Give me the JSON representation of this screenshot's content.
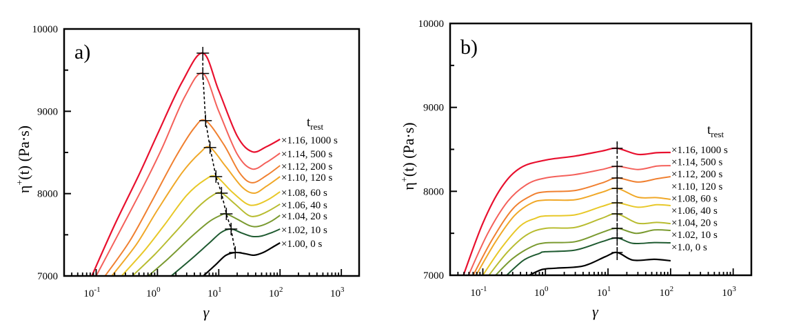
{
  "chart_data": [
    {
      "type": "line",
      "panel_label": "a)",
      "xlabel": "γ",
      "ylabel": "η⁺(t) (Pa·s)",
      "xscale": "log",
      "xlim": [
        0.03,
        1950
      ],
      "ylim": [
        7000,
        10000
      ],
      "xticks": [
        {
          "value": 0.1,
          "base": "10",
          "exp": "-1"
        },
        {
          "value": 1,
          "base": "10",
          "exp": "0"
        },
        {
          "value": 10,
          "base": "10",
          "exp": "1"
        },
        {
          "value": 100,
          "base": "10",
          "exp": "2"
        },
        {
          "value": 1000,
          "base": "10",
          "exp": "3"
        }
      ],
      "yticks": [
        7000,
        8000,
        9000,
        10000
      ],
      "legend_title": {
        "main": "t",
        "sub": "rest"
      },
      "legend_position": "right",
      "grid": false,
      "series": [
        {
          "name": "×1.16, 1000 s",
          "color": "#e8102e",
          "points": [
            [
              0.085,
              7000
            ],
            [
              0.2,
              7620
            ],
            [
              0.5,
              8230
            ],
            [
              1,
              8720
            ],
            [
              2.5,
              9350
            ],
            [
              5.5,
              9707
            ],
            [
              10,
              9250
            ],
            [
              20,
              8700
            ],
            [
              35,
              8509
            ],
            [
              60,
              8570
            ],
            [
              100,
              8660
            ]
          ],
          "peak": [
            5.5,
            9707
          ]
        },
        {
          "name": "×1.14, 500 s",
          "color": "#f4605a",
          "points": [
            [
              0.1,
              7000
            ],
            [
              0.25,
              7560
            ],
            [
              0.6,
              8100
            ],
            [
              1.2,
              8560
            ],
            [
              2.8,
              9180
            ],
            [
              5.5,
              9460
            ],
            [
              10,
              9000
            ],
            [
              20,
              8480
            ],
            [
              35,
              8300
            ],
            [
              60,
              8380
            ],
            [
              100,
              8492
            ]
          ],
          "peak": [
            5.5,
            9460
          ]
        },
        {
          "name": "×1.12, 200 s",
          "color": "#f08030",
          "points": [
            [
              0.14,
              7000
            ],
            [
              0.35,
              7420
            ],
            [
              0.8,
              7900
            ],
            [
              2,
              8450
            ],
            [
              4,
              8800
            ],
            [
              6.1,
              8886
            ],
            [
              12,
              8600
            ],
            [
              22,
              8250
            ],
            [
              35,
              8132
            ],
            [
              60,
              8220
            ],
            [
              100,
              8341
            ]
          ],
          "peak": [
            6.1,
            8886
          ]
        },
        {
          "name": "×1.10, 120 s",
          "color": "#f0a828",
          "points": [
            [
              0.18,
              7000
            ],
            [
              0.45,
              7380
            ],
            [
              1,
              7800
            ],
            [
              2.5,
              8250
            ],
            [
              5,
              8500
            ],
            [
              7.2,
              8560
            ],
            [
              13,
              8330
            ],
            [
              24,
              8080
            ],
            [
              38,
              8006
            ],
            [
              60,
              8090
            ],
            [
              100,
              8207
            ]
          ],
          "peak": [
            7.2,
            8560
          ]
        },
        {
          "name": "×1.08, 60 s",
          "color": "#e8c828",
          "points": [
            [
              0.26,
              7000
            ],
            [
              0.6,
              7300
            ],
            [
              1.3,
              7620
            ],
            [
              3,
              7980
            ],
            [
              6,
              8170
            ],
            [
              9,
              8207
            ],
            [
              16,
              8030
            ],
            [
              28,
              7880
            ],
            [
              40,
              7863
            ],
            [
              65,
              7930
            ],
            [
              100,
              8023
            ]
          ],
          "peak": [
            9.0,
            8207
          ]
        },
        {
          "name": "×1.06, 40 s",
          "color": "#b8bc30",
          "points": [
            [
              0.39,
              7000
            ],
            [
              0.9,
              7260
            ],
            [
              2,
              7540
            ],
            [
              4.5,
              7830
            ],
            [
              8,
              7980
            ],
            [
              11.1,
              8006
            ],
            [
              18,
              7880
            ],
            [
              30,
              7740
            ],
            [
              42,
              7729
            ],
            [
              65,
              7790
            ],
            [
              100,
              7872
            ]
          ],
          "peak": [
            11.1,
            8006
          ]
        },
        {
          "name": "×1.04, 20 s",
          "color": "#7a9a30",
          "points": [
            [
              0.71,
              7000
            ],
            [
              1.5,
              7210
            ],
            [
              3.5,
              7470
            ],
            [
              7,
              7660
            ],
            [
              11,
              7740
            ],
            [
              13.3,
              7754
            ],
            [
              20,
              7690
            ],
            [
              32,
              7610
            ],
            [
              45,
              7603
            ],
            [
              70,
              7660
            ],
            [
              100,
              7737
            ]
          ],
          "peak": [
            13.3,
            7754
          ]
        },
        {
          "name": "×1.02, 10 s",
          "color": "#1e5a30",
          "points": [
            [
              1.68,
              7000
            ],
            [
              3.5,
              7200
            ],
            [
              7,
              7400
            ],
            [
              11,
              7530
            ],
            [
              15.9,
              7570
            ],
            [
              24,
              7520
            ],
            [
              35,
              7480
            ],
            [
              50,
              7485
            ],
            [
              75,
              7530
            ],
            [
              100,
              7570
            ]
          ],
          "peak": [
            15.9,
            7570
          ]
        },
        {
          "name": "×1.00, 0 s",
          "color": "#000000",
          "points": [
            [
              5.6,
              7000
            ],
            [
              9,
              7140
            ],
            [
              13,
              7250
            ],
            [
              18.6,
              7285
            ],
            [
              27,
              7270
            ],
            [
              38,
              7252
            ],
            [
              55,
              7290
            ],
            [
              80,
              7360
            ],
            [
              100,
              7402
            ]
          ],
          "peak": [
            18.6,
            7285
          ]
        }
      ]
    },
    {
      "type": "line",
      "panel_label": "b)",
      "xlabel": "γ",
      "ylabel": "η⁺(t) (Pa·s)",
      "xscale": "log",
      "xlim": [
        0.03,
        1950
      ],
      "ylim": [
        7000,
        10000
      ],
      "xticks": [
        {
          "value": 0.1,
          "base": "10",
          "exp": "-1"
        },
        {
          "value": 1,
          "base": "10",
          "exp": "0"
        },
        {
          "value": 10,
          "base": "10",
          "exp": "1"
        },
        {
          "value": 100,
          "base": "10",
          "exp": "2"
        },
        {
          "value": 1000,
          "base": "10",
          "exp": "3"
        }
      ],
      "yticks": [
        7000,
        8000,
        9000,
        10000
      ],
      "legend_title": {
        "main": "t",
        "sub": "rest"
      },
      "legend_position": "right",
      "grid": false,
      "series": [
        {
          "name": "×1.16, 1000 s",
          "color": "#e8102e",
          "points": [
            [
              0.049,
              7000
            ],
            [
              0.1,
              7620
            ],
            [
              0.2,
              8050
            ],
            [
              0.4,
              8280
            ],
            [
              1,
              8372
            ],
            [
              3,
              8420
            ],
            [
              8,
              8480
            ],
            [
              14,
              8512
            ],
            [
              30,
              8440
            ],
            [
              60,
              8460
            ],
            [
              100,
              8463
            ]
          ],
          "peak": [
            14,
            8512
          ]
        },
        {
          "name": "×1.14, 500 s",
          "color": "#f4605a",
          "points": [
            [
              0.059,
              7000
            ],
            [
              0.12,
              7500
            ],
            [
              0.25,
              7880
            ],
            [
              0.5,
              8080
            ],
            [
              1,
              8159
            ],
            [
              3,
              8200
            ],
            [
              8,
              8260
            ],
            [
              14,
              8298
            ],
            [
              30,
              8260
            ],
            [
              60,
              8300
            ],
            [
              100,
              8306
            ]
          ],
          "peak": [
            14,
            8298
          ]
        },
        {
          "name": "×1.12, 200 s",
          "color": "#f08030",
          "points": [
            [
              0.07,
              7000
            ],
            [
              0.14,
              7420
            ],
            [
              0.3,
              7790
            ],
            [
              0.6,
              7950
            ],
            [
              1,
              7994
            ],
            [
              3,
              8010
            ],
            [
              8,
              8100
            ],
            [
              14,
              8159
            ],
            [
              30,
              8110
            ],
            [
              60,
              8150
            ],
            [
              100,
              8175
            ]
          ],
          "peak": [
            14,
            8159
          ]
        },
        {
          "name": "×1.10, 120 s",
          "color": "#f0a828",
          "points": [
            [
              0.078,
              7000
            ],
            [
              0.16,
              7400
            ],
            [
              0.32,
              7710
            ],
            [
              0.6,
              7860
            ],
            [
              1,
              7896
            ],
            [
              3,
              7900
            ],
            [
              8,
              7990
            ],
            [
              14,
              8035
            ],
            [
              30,
              7930
            ],
            [
              60,
              7925
            ],
            [
              100,
              7904
            ]
          ],
          "peak": [
            14,
            8035
          ]
        },
        {
          "name": "×1.08, 60 s",
          "color": "#e8c828",
          "points": [
            [
              0.1,
              7000
            ],
            [
              0.2,
              7330
            ],
            [
              0.4,
              7590
            ],
            [
              0.7,
              7680
            ],
            [
              1,
              7707
            ],
            [
              3,
              7720
            ],
            [
              8,
              7820
            ],
            [
              14,
              7863
            ],
            [
              30,
              7810
            ],
            [
              60,
              7840
            ],
            [
              100,
              7830
            ]
          ],
          "peak": [
            14,
            7863
          ]
        },
        {
          "name": "×1.06, 40 s",
          "color": "#b8bc30",
          "points": [
            [
              0.125,
              7000
            ],
            [
              0.25,
              7280
            ],
            [
              0.5,
              7480
            ],
            [
              1,
              7559
            ],
            [
              3,
              7570
            ],
            [
              8,
              7680
            ],
            [
              14,
              7731
            ],
            [
              30,
              7620
            ],
            [
              60,
              7630
            ],
            [
              100,
              7616
            ]
          ],
          "peak": [
            14,
            7731
          ]
        },
        {
          "name": "×1.04, 20 s",
          "color": "#7a9a30",
          "points": [
            [
              0.16,
              7000
            ],
            [
              0.3,
              7200
            ],
            [
              0.6,
              7340
            ],
            [
              1,
              7386
            ],
            [
              3,
              7400
            ],
            [
              8,
              7510
            ],
            [
              14,
              7559
            ],
            [
              28,
              7500
            ],
            [
              55,
              7540
            ],
            [
              100,
              7534
            ]
          ],
          "peak": [
            14,
            7559
          ]
        },
        {
          "name": "×1.02, 10 s",
          "color": "#1e5a30",
          "points": [
            [
              0.24,
              7000
            ],
            [
              0.45,
              7180
            ],
            [
              0.8,
              7260
            ],
            [
              1,
              7280
            ],
            [
              3,
              7300
            ],
            [
              8,
              7400
            ],
            [
              14,
              7444
            ],
            [
              25,
              7380
            ],
            [
              55,
              7390
            ],
            [
              100,
              7386
            ]
          ],
          "peak": [
            14,
            7444
          ]
        },
        {
          "name": "×1.0,  0 s",
          "color": "#000000",
          "points": [
            [
              0.55,
              7000
            ],
            [
              0.9,
              7070
            ],
            [
              1.5,
              7085
            ],
            [
              4,
              7110
            ],
            [
              9,
              7220
            ],
            [
              14,
              7271
            ],
            [
              25,
              7180
            ],
            [
              55,
              7190
            ],
            [
              100,
              7173
            ]
          ],
          "peak": [
            14,
            7271
          ]
        }
      ]
    }
  ]
}
